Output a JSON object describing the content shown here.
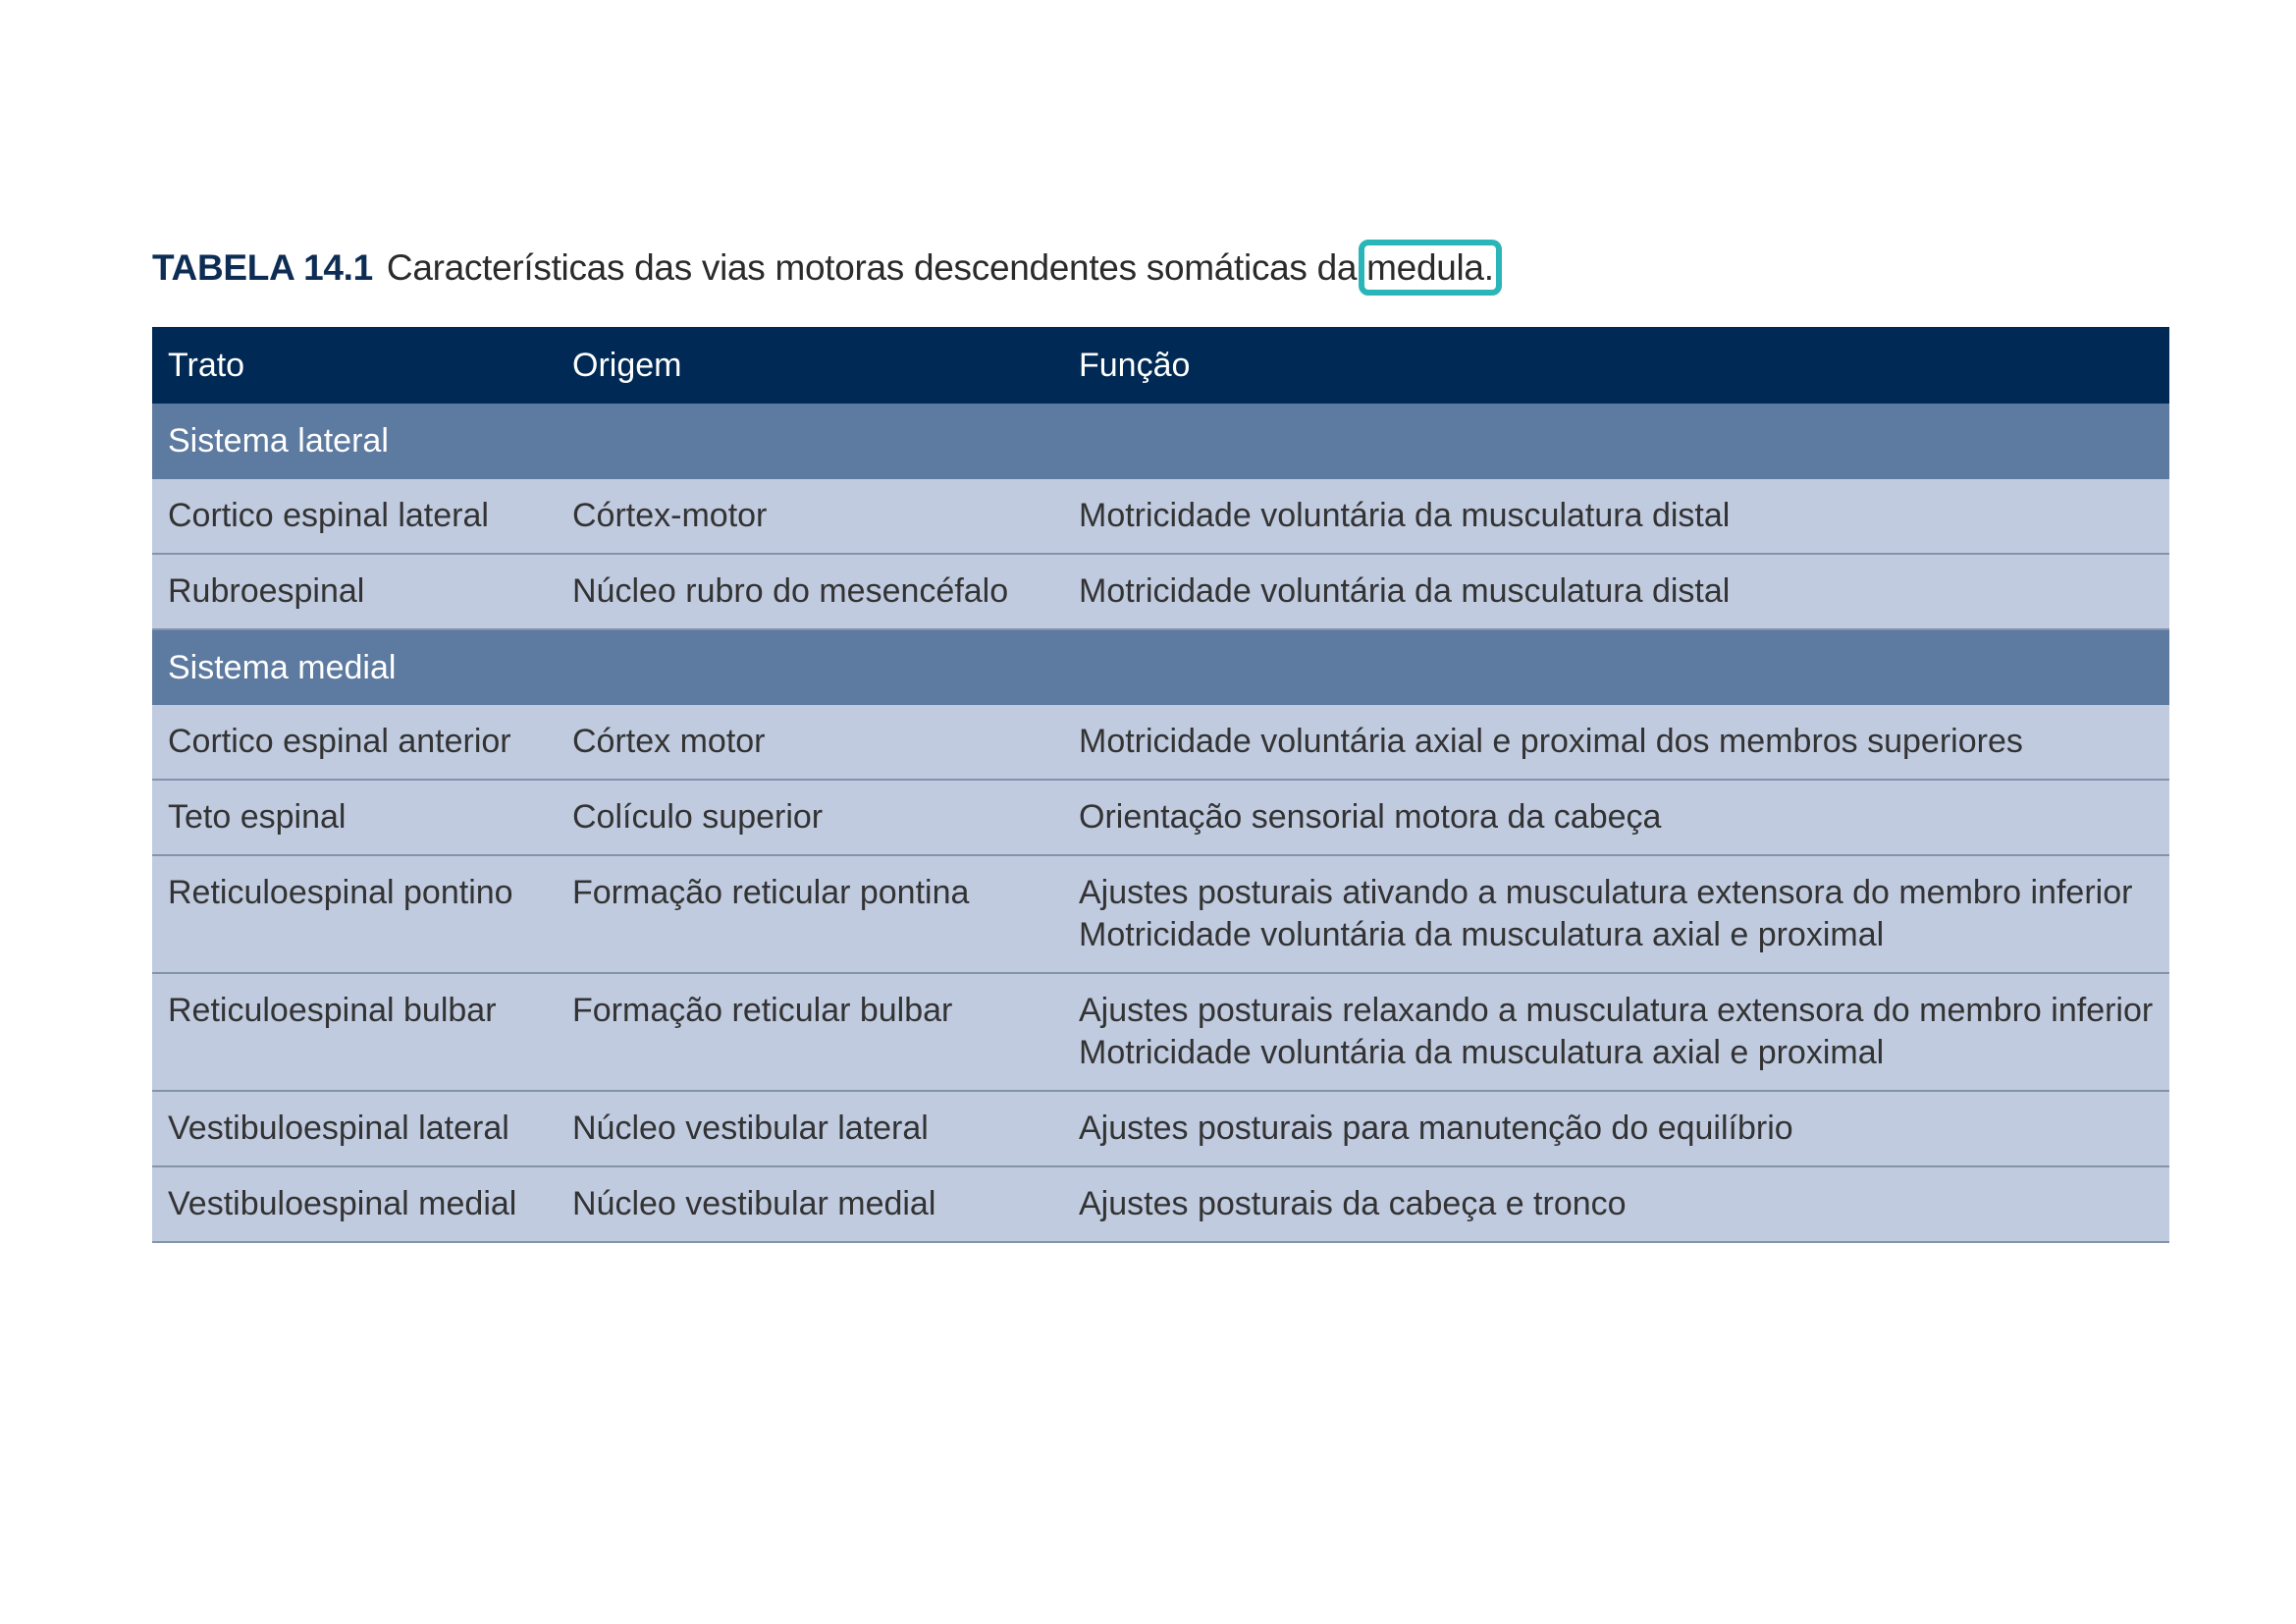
{
  "caption": {
    "label": "TABELA 14.1",
    "text": "Características das vias motoras descendentes somáticas da",
    "highlighted_word": "medula",
    "period": ".",
    "highlight_color": "#2ab5b9"
  },
  "table": {
    "headers": [
      "Trato",
      "Origem",
      "Função"
    ],
    "sections": [
      {
        "title": "Sistema lateral",
        "rows": [
          {
            "trato": "Cortico espinal lateral",
            "origem": "Córtex-motor",
            "funcao": [
              "Motricidade voluntária da musculatura distal"
            ]
          },
          {
            "trato": "Rubroespinal",
            "origem": "Núcleo rubro do mesencéfalo",
            "funcao": [
              "Motricidade voluntária da musculatura distal"
            ]
          }
        ]
      },
      {
        "title": "Sistema medial",
        "rows": [
          {
            "trato": "Cortico espinal anterior",
            "origem": "Córtex motor",
            "funcao": [
              "Motricidade voluntária axial e proximal dos membros superiores"
            ]
          },
          {
            "trato": "Teto espinal",
            "origem": "Colículo superior",
            "funcao": [
              "Orientação sensorial motora da cabeça"
            ]
          },
          {
            "trato": "Reticuloespinal pontino",
            "origem": "Formação reticular pontina",
            "funcao": [
              "Ajustes posturais ativando a musculatura extensora do membro inferior",
              "Motricidade voluntária da musculatura axial e proximal"
            ]
          },
          {
            "trato": "Reticuloespinal bulbar",
            "origem": "Formação reticular bulbar",
            "funcao": [
              "Ajustes posturais relaxando a musculatura extensora do membro inferior",
              "Motricidade voluntária da musculatura axial e proximal"
            ]
          },
          {
            "trato": "Vestibuloespinal lateral",
            "origem": "Núcleo vestibular lateral",
            "funcao": [
              "Ajustes posturais para manutenção do equilíbrio"
            ]
          },
          {
            "trato": "Vestibuloespinal medial",
            "origem": "Núcleo vestibular medial",
            "funcao": [
              "Ajustes posturais da cabeça e tronco"
            ]
          }
        ]
      }
    ],
    "colors": {
      "header": "#002a55",
      "section": "#5d7aa0",
      "row": "#c0cbe0"
    }
  }
}
